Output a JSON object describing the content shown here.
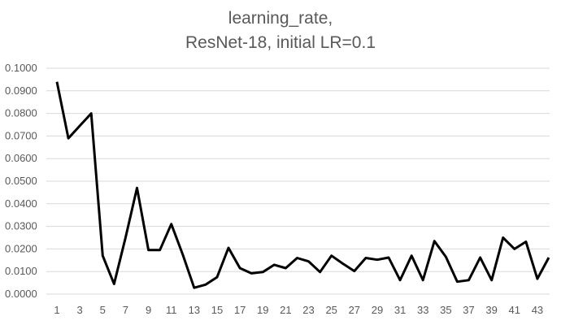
{
  "chart_data": {
    "type": "line",
    "title_lines": [
      "learning_rate,",
      "ResNet-18, initial LR=0.1"
    ],
    "xlabel": "",
    "ylabel": "",
    "ylim": [
      0,
      0.1
    ],
    "y_ticks": [
      "0.0000",
      "0.0100",
      "0.0200",
      "0.0300",
      "0.0400",
      "0.0500",
      "0.0600",
      "0.0700",
      "0.0800",
      "0.0900",
      "0.1000"
    ],
    "y_tick_values": [
      0,
      0.01,
      0.02,
      0.03,
      0.04,
      0.05,
      0.06,
      0.07,
      0.08,
      0.09,
      0.1
    ],
    "x_tick_labels": [
      "1",
      "3",
      "5",
      "7",
      "9",
      "11",
      "13",
      "15",
      "17",
      "19",
      "21",
      "23",
      "25",
      "27",
      "29",
      "31",
      "33",
      "35",
      "37",
      "39",
      "41",
      "43"
    ],
    "x_tick_values": [
      1,
      3,
      5,
      7,
      9,
      11,
      13,
      15,
      17,
      19,
      21,
      23,
      25,
      27,
      29,
      31,
      33,
      35,
      37,
      39,
      41,
      43
    ],
    "grid": true,
    "x": [
      1,
      2,
      3,
      4,
      5,
      6,
      7,
      8,
      9,
      10,
      11,
      12,
      13,
      14,
      15,
      16,
      17,
      18,
      19,
      20,
      21,
      22,
      23,
      24,
      25,
      26,
      27,
      28,
      29,
      30,
      31,
      32,
      33,
      34,
      35,
      36,
      37,
      38,
      39,
      40,
      41,
      42,
      43,
      44
    ],
    "series": [
      {
        "values": [
          0.094,
          0.069,
          0.0745,
          0.08,
          0.017,
          0.0045,
          0.025,
          0.047,
          0.0195,
          0.0195,
          0.031,
          0.0175,
          0.0028,
          0.0042,
          0.0075,
          0.0205,
          0.0115,
          0.0092,
          0.0098,
          0.013,
          0.0115,
          0.016,
          0.0145,
          0.0098,
          0.017,
          0.0135,
          0.0102,
          0.016,
          0.0152,
          0.0162,
          0.0062,
          0.017,
          0.0062,
          0.0235,
          0.0165,
          0.0055,
          0.0062,
          0.0162,
          0.0062,
          0.025,
          0.02,
          0.0232,
          0.0068,
          0.0162
        ],
        "color": "#000000"
      }
    ]
  }
}
